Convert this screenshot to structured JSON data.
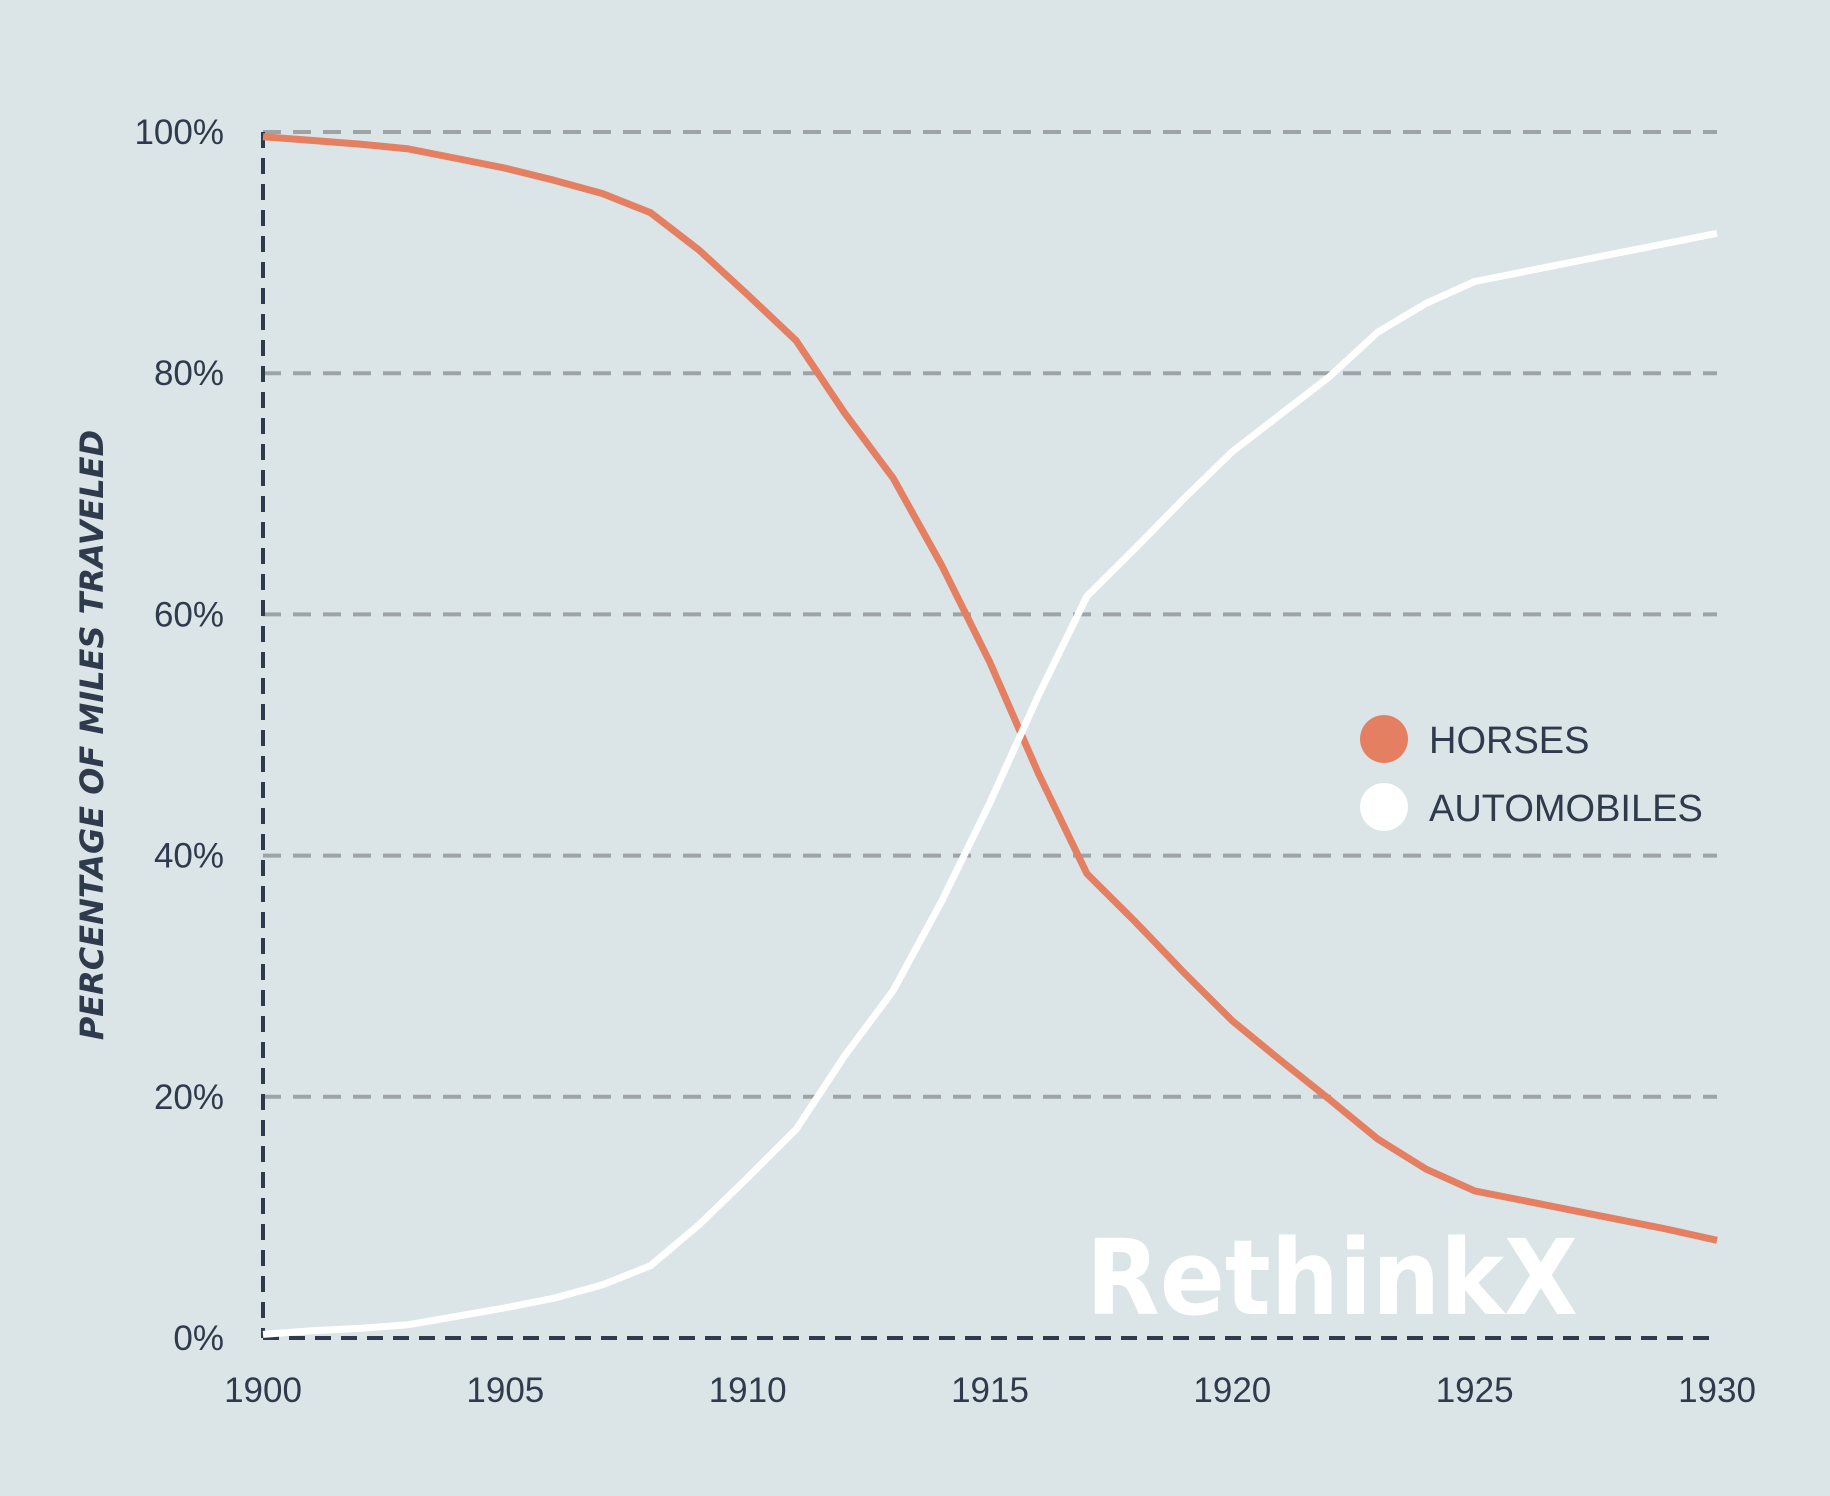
{
  "colors": {
    "background": "#dbe4e7",
    "text": "#2f3b4c",
    "gridline": "#9ea3a5",
    "horses": "#e47f62",
    "automobiles": "#ffffff"
  },
  "logo": {
    "text": "RethinkX"
  },
  "chart_data": {
    "type": "line",
    "title": "",
    "xlabel": "",
    "ylabel": "PERCENTAGE OF MILES TRAVELED",
    "xlim": [
      1900,
      1930
    ],
    "ylim": [
      0,
      100
    ],
    "x_ticks": [
      1900,
      1905,
      1910,
      1915,
      1920,
      1925,
      1930
    ],
    "y_ticks": [
      0,
      20,
      40,
      60,
      80,
      100
    ],
    "y_tick_format": "%",
    "grid": {
      "horizontal": true,
      "vertical": false,
      "style": "dashed"
    },
    "legend": {
      "position": "right-center"
    },
    "series": [
      {
        "name": "HORSES",
        "color": "#e47f62",
        "points": [
          [
            1900,
            99.6
          ],
          [
            1901,
            99.3
          ],
          [
            1902,
            99.0
          ],
          [
            1903,
            98.6
          ],
          [
            1904,
            97.8
          ],
          [
            1905,
            97.0
          ],
          [
            1906,
            96.0
          ],
          [
            1907,
            94.9
          ],
          [
            1908,
            93.3
          ],
          [
            1909,
            90.2
          ],
          [
            1910,
            86.5
          ],
          [
            1911,
            82.7
          ],
          [
            1912,
            76.7
          ],
          [
            1913,
            71.3
          ],
          [
            1914,
            64.1
          ],
          [
            1915,
            56.0
          ],
          [
            1916,
            46.8
          ],
          [
            1917,
            38.5
          ],
          [
            1918,
            34.5
          ],
          [
            1919,
            30.3
          ],
          [
            1920,
            26.3
          ],
          [
            1921,
            23.0
          ],
          [
            1922,
            19.8
          ],
          [
            1923,
            16.5
          ],
          [
            1924,
            14.0
          ],
          [
            1925,
            12.2
          ],
          [
            1926,
            11.4
          ],
          [
            1927,
            10.6
          ],
          [
            1928,
            9.8
          ],
          [
            1929,
            9.0
          ],
          [
            1930,
            8.1
          ]
        ]
      },
      {
        "name": "AUTOMOBILES",
        "color": "#ffffff",
        "points": [
          [
            1900,
            0.3
          ],
          [
            1901,
            0.6
          ],
          [
            1902,
            0.8
          ],
          [
            1903,
            1.1
          ],
          [
            1904,
            1.8
          ],
          [
            1905,
            2.5
          ],
          [
            1906,
            3.3
          ],
          [
            1907,
            4.4
          ],
          [
            1908,
            6.0
          ],
          [
            1909,
            9.4
          ],
          [
            1910,
            13.3
          ],
          [
            1911,
            17.3
          ],
          [
            1912,
            23.4
          ],
          [
            1913,
            28.8
          ],
          [
            1914,
            36.2
          ],
          [
            1915,
            44.4
          ],
          [
            1916,
            53.3
          ],
          [
            1917,
            61.5
          ],
          [
            1918,
            65.5
          ],
          [
            1919,
            69.6
          ],
          [
            1920,
            73.5
          ],
          [
            1921,
            76.6
          ],
          [
            1922,
            79.7
          ],
          [
            1923,
            83.4
          ],
          [
            1924,
            85.8
          ],
          [
            1925,
            87.6
          ],
          [
            1926,
            88.4
          ],
          [
            1927,
            89.2
          ],
          [
            1928,
            90.0
          ],
          [
            1929,
            90.8
          ],
          [
            1930,
            91.6
          ]
        ]
      }
    ]
  }
}
